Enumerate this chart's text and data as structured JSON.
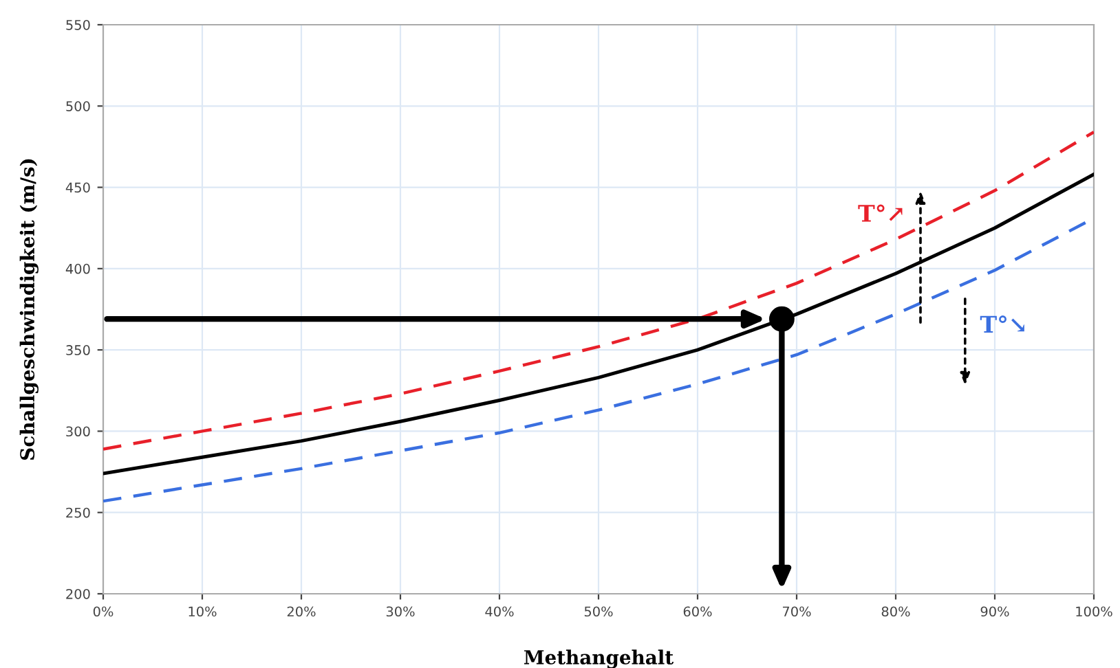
{
  "chart_data": {
    "type": "line",
    "xlabel": "Methangehalt",
    "ylabel": "Schallgeschwindigkeit (m/s)",
    "x": [
      0,
      10,
      20,
      30,
      40,
      50,
      60,
      70,
      80,
      90,
      100
    ],
    "series": [
      {
        "color": "#000000",
        "line_style": "solid",
        "values": [
          274,
          284,
          294,
          306,
          319,
          333,
          350,
          372,
          397,
          425,
          458
        ]
      },
      {
        "color": "#e8202a",
        "line_style": "dashed",
        "values": [
          289,
          300,
          311,
          323,
          337,
          352,
          369,
          391,
          418,
          448,
          484
        ]
      },
      {
        "color": "#3a6fe0",
        "line_style": "dashed",
        "values": [
          257,
          267,
          277,
          288,
          299,
          313,
          329,
          347,
          372,
          399,
          431
        ]
      },
      {
        "type": "scatter",
        "color": "#000000",
        "marker": "circle",
        "x": [
          68.5
        ],
        "values": [
          369
        ]
      }
    ],
    "annotations": [
      "T°↗",
      "T°↘"
    ],
    "xlim": [
      0,
      100
    ],
    "ylim": [
      200,
      550
    ],
    "xticks": [
      {
        "value": 0,
        "label": "0%"
      },
      {
        "value": 10,
        "label": "10%"
      },
      {
        "value": 20,
        "label": "20%"
      },
      {
        "value": 30,
        "label": "30%"
      },
      {
        "value": 40,
        "label": "40%"
      },
      {
        "value": 50,
        "label": "50%"
      },
      {
        "value": 60,
        "label": "60%"
      },
      {
        "value": 70,
        "label": "70%"
      },
      {
        "value": 80,
        "label": "80%"
      },
      {
        "value": 90,
        "label": "90%"
      },
      {
        "value": 100,
        "label": "100%"
      }
    ],
    "yticks": [
      200,
      250,
      300,
      350,
      400,
      450,
      500,
      550
    ],
    "grid": true,
    "legend": false
  }
}
